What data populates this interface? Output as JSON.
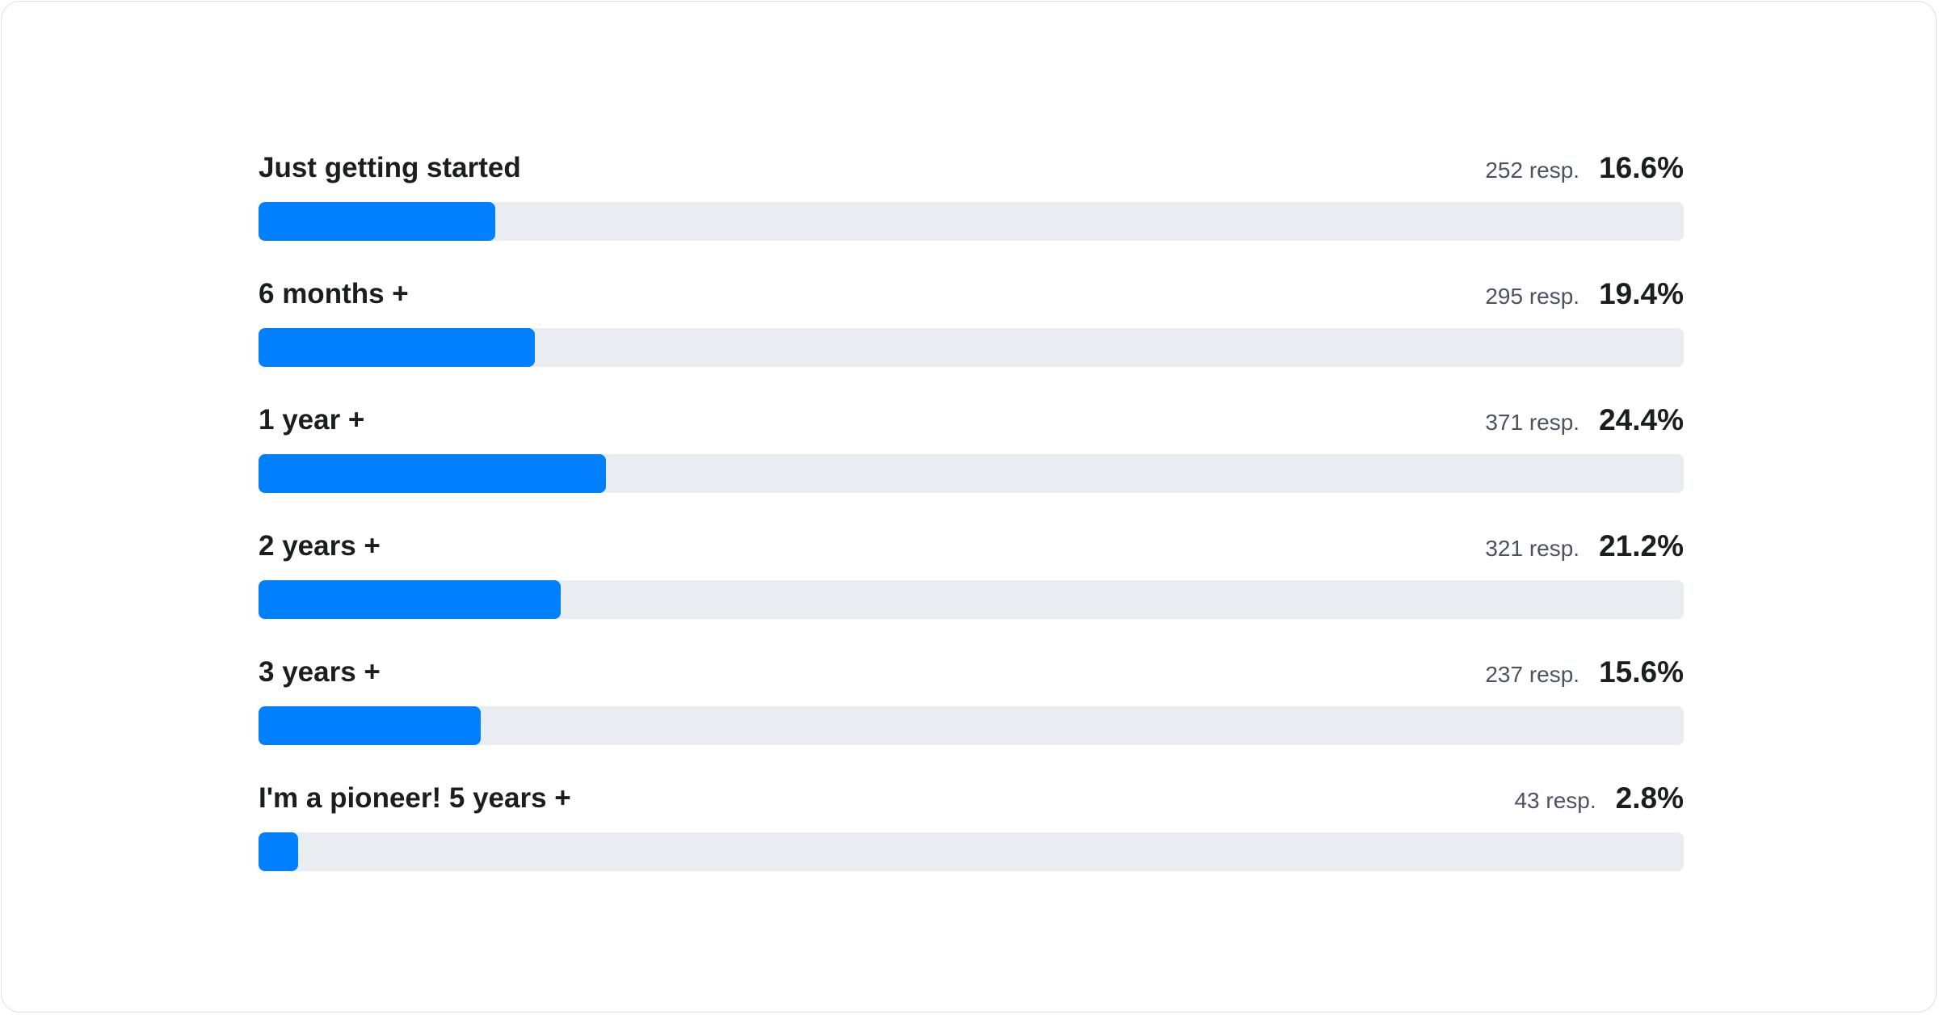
{
  "chart_data": {
    "type": "bar",
    "orientation": "horizontal",
    "categories": [
      "Just getting started",
      "6 months +",
      "1 year +",
      "2 years +",
      "3 years +",
      "I'm a pioneer! 5 years +"
    ],
    "responses": [
      252,
      295,
      371,
      321,
      237,
      43
    ],
    "responses_suffix": "resp.",
    "values": [
      16.6,
      19.4,
      24.4,
      21.2,
      15.6,
      2.8
    ],
    "value_labels": [
      "16.6%",
      "19.4%",
      "24.4%",
      "21.2%",
      "15.6%",
      "2.8%"
    ],
    "xlim": [
      0,
      100
    ],
    "grid": false,
    "colors": {
      "fill": "#0080ff",
      "track": "#e9ecf0"
    }
  }
}
